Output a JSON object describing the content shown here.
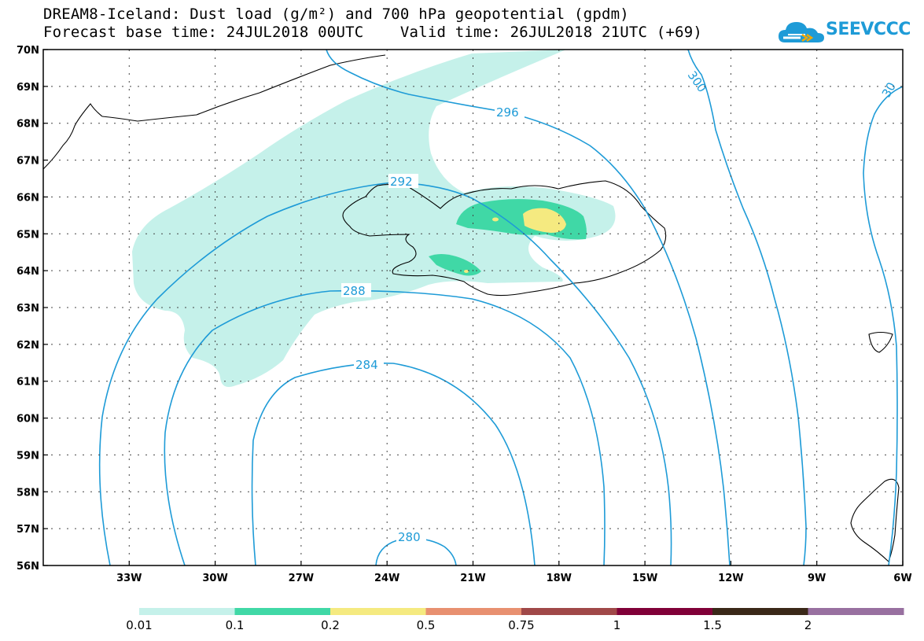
{
  "title_line1": "DREAM8-Iceland: Dust load (g/m²) and 700 hPa geopotential (gpdm)",
  "title_line2": "Forecast base time: 24JUL2018 00UTC    Valid time: 26JUL2018 21UTC (+69)",
  "logo_text": "SEEVCCC",
  "lat_labels": [
    "70N",
    "69N",
    "68N",
    "67N",
    "66N",
    "65N",
    "64N",
    "63N",
    "62N",
    "61N",
    "60N",
    "59N",
    "58N",
    "57N",
    "56N"
  ],
  "lon_labels": [
    "33W",
    "30W",
    "27W",
    "24W",
    "21W",
    "18W",
    "15W",
    "12W",
    "9W",
    "6W"
  ],
  "contour_labels": {
    "c280": "280",
    "c284": "284",
    "c288": "288",
    "c292": "292",
    "c296": "296",
    "c300": "300",
    "c300b": "30"
  },
  "colorbar": {
    "labels": [
      "0.01",
      "0.1",
      "0.2",
      "0.5",
      "0.75",
      "1",
      "1.5",
      "2"
    ],
    "colors": [
      "#c5f1ea",
      "#40d8a6",
      "#f5ea80",
      "#e89070",
      "#a04848",
      "#800038",
      "#3a2818",
      "#9870a0"
    ]
  },
  "colors": {
    "contour": "#1e9bd7",
    "dust_low": "#c5f1ea",
    "dust_mid": "#40d8a6",
    "dust_high": "#f5ea80"
  }
}
